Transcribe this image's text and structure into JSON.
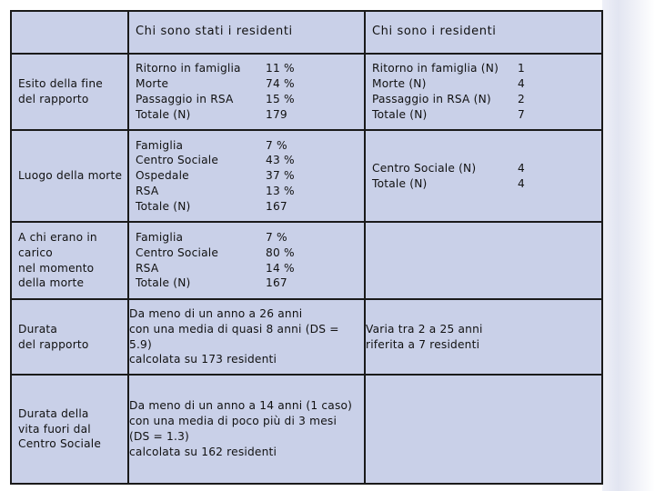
{
  "header": {
    "col1": "Chi sono stati i residenti",
    "col2": "Chi sono i residenti"
  },
  "rows": [
    {
      "label_lines": [
        "Esito della fine",
        "del rapporto"
      ],
      "stati": {
        "labels": [
          "Ritorno in famiglia",
          "Morte",
          "Passaggio in RSA",
          "Totale (N)"
        ],
        "values": [
          "11 %",
          "74 %",
          "15 %",
          "179"
        ]
      },
      "residenti": {
        "labels": [
          "Ritorno in famiglia (N)",
          "Morte (N)",
          "Passaggio in RSA (N)",
          "Totale (N)"
        ],
        "values": [
          "1",
          "4",
          "2",
          "7"
        ]
      }
    },
    {
      "label_lines": [
        "Luogo della morte"
      ],
      "stati": {
        "labels": [
          "Famiglia",
          "Centro Sociale",
          "Ospedale",
          "RSA",
          "Totale (N)"
        ],
        "values": [
          "7 %",
          "43 %",
          "37 %",
          "13 %",
          "167"
        ]
      },
      "residenti": {
        "labels": [
          "Centro Sociale (N)",
          "Totale (N)"
        ],
        "values": [
          "4",
          "4"
        ]
      }
    },
    {
      "label_lines": [
        "A chi erano in",
        "carico",
        "nel momento",
        "della morte"
      ],
      "stati": {
        "labels": [
          "Famiglia",
          "Centro Sociale",
          "RSA",
          "Totale (N)"
        ],
        "values": [
          "7 %",
          "80 %",
          "14 %",
          "167"
        ]
      }
    },
    {
      "label_lines": [
        "Durata",
        "del rapporto"
      ],
      "stati_text_lines": [
        "Da meno di un anno a 26 anni",
        "con una media di quasi 8 anni (DS =",
        "5.9)",
        "calcolata su 173 residenti"
      ],
      "residenti_text_lines": [
        "Varia tra 2 a 25 anni",
        "riferita a 7 residenti"
      ]
    },
    {
      "label_lines": [
        "Durata della",
        "vita fuori dal",
        "Centro Sociale"
      ],
      "stati_text_lines": [
        "Da meno di un anno a 14 anni (1 caso)",
        "con una media di poco più di 3 mesi",
        "(DS = 1.3)",
        "calcolata su 162 residenti"
      ]
    }
  ],
  "colors": {
    "table_bg": "#c9d0e8",
    "border": "#1a1a1a",
    "side_gradient": "#e2e5f1"
  }
}
